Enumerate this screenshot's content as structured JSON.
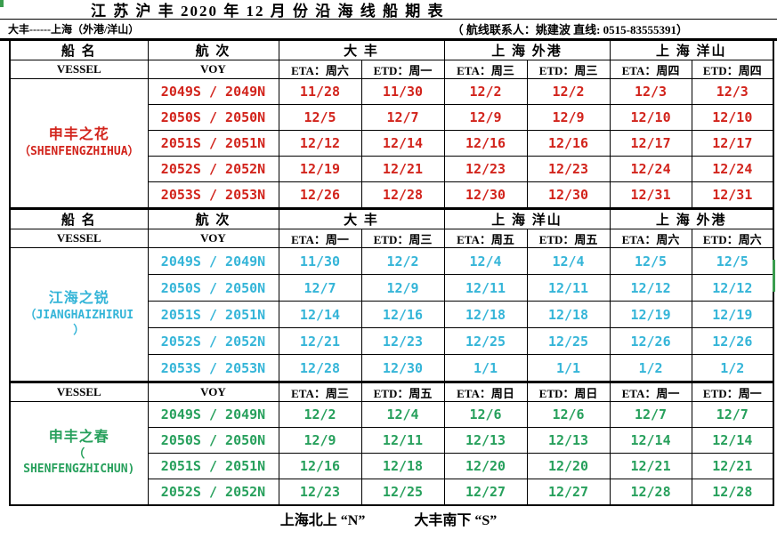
{
  "page": {
    "title": "江 苏 沪 丰 2020 年 12 月 份 沿 海 线 船 期 表",
    "route": "大丰------上海（外港/洋山）",
    "contact": "（ 航线联系人：姚建波 直线: 0515-83555391）",
    "footer_north": "上海北上 “N”",
    "footer_south": "大丰南下 “S”"
  },
  "labels": {
    "vessel_cn": "船  名",
    "voy_cn": "航  次",
    "vessel_en": "VESSEL",
    "voy_en": "VOY"
  },
  "colors": {
    "section1": "#d2241c",
    "section2": "#35b5d8",
    "section3": "#27a05c",
    "border": "#000000",
    "artifact_green": "#3a9d4e"
  },
  "sections": [
    {
      "vessel_lines": [
        "申丰之花",
        "（SHENFENGZHIHUA）"
      ],
      "color_key": "section1",
      "ports": [
        "大  丰",
        "上 海 外港",
        "上 海 洋山"
      ],
      "schedule_header": [
        "ETA：周六",
        "ETD：周一",
        "ETA：周三",
        "ETD：周三",
        "ETA：周四",
        "ETD：周四"
      ],
      "rows": [
        {
          "voy": "2049S / 2049N",
          "dates": [
            "11/28",
            "11/30",
            "12/2",
            "12/2",
            "12/3",
            "12/3"
          ]
        },
        {
          "voy": "2050S / 2050N",
          "dates": [
            "12/5",
            "12/7",
            "12/9",
            "12/9",
            "12/10",
            "12/10"
          ]
        },
        {
          "voy": "2051S / 2051N",
          "dates": [
            "12/12",
            "12/14",
            "12/16",
            "12/16",
            "12/17",
            "12/17"
          ]
        },
        {
          "voy": "2052S / 2052N",
          "dates": [
            "12/19",
            "12/21",
            "12/23",
            "12/23",
            "12/24",
            "12/24"
          ]
        },
        {
          "voy": "2053S / 2053N",
          "dates": [
            "12/26",
            "12/28",
            "12/30",
            "12/30",
            "12/31",
            "12/31"
          ]
        }
      ]
    },
    {
      "vessel_lines": [
        "江海之锐",
        "（JIANGHAIZHIRUI",
        "）"
      ],
      "color_key": "section2",
      "ports": [
        "大 丰",
        "上 海 洋山",
        "上 海 外港"
      ],
      "schedule_header": [
        "ETA：周一",
        "ETD：周三",
        "ETA：周五",
        "ETD：周五",
        "ETA：周六",
        "ETD：周六"
      ],
      "rows": [
        {
          "voy": "2049S / 2049N",
          "dates": [
            "11/30",
            "12/2",
            "12/4",
            "12/4",
            "12/5",
            "12/5"
          ]
        },
        {
          "voy": "2050S / 2050N",
          "dates": [
            "12/7",
            "12/9",
            "12/11",
            "12/11",
            "12/12",
            "12/12"
          ]
        },
        {
          "voy": "2051S / 2051N",
          "dates": [
            "12/14",
            "12/16",
            "12/18",
            "12/18",
            "12/19",
            "12/19"
          ]
        },
        {
          "voy": "2052S / 2052N",
          "dates": [
            "12/21",
            "12/23",
            "12/25",
            "12/25",
            "12/26",
            "12/26"
          ]
        },
        {
          "voy": "2053S / 2053N",
          "dates": [
            "12/28",
            "12/30",
            "1/1",
            "1/1",
            "1/2",
            "1/2"
          ]
        }
      ]
    },
    {
      "vessel_lines": [
        "申丰之春",
        "（",
        "SHENFENGZHICHUN)"
      ],
      "color_key": "section3",
      "ports": null,
      "schedule_header": [
        "ETA：周三",
        "ETD：周五",
        "ETA：周日",
        "ETD：周日",
        "ETA：周一",
        "ETD：周一"
      ],
      "rows": [
        {
          "voy": "2049S / 2049N",
          "dates": [
            "12/2",
            "12/4",
            "12/6",
            "12/6",
            "12/7",
            "12/7"
          ]
        },
        {
          "voy": "2050S / 2050N",
          "dates": [
            "12/9",
            "12/11",
            "12/13",
            "12/13",
            "12/14",
            "12/14"
          ]
        },
        {
          "voy": "2051S / 2051N",
          "dates": [
            "12/16",
            "12/18",
            "12/20",
            "12/20",
            "12/21",
            "12/21"
          ]
        },
        {
          "voy": "2052S / 2052N",
          "dates": [
            "12/23",
            "12/25",
            "12/27",
            "12/27",
            "12/28",
            "12/28"
          ]
        }
      ]
    }
  ]
}
